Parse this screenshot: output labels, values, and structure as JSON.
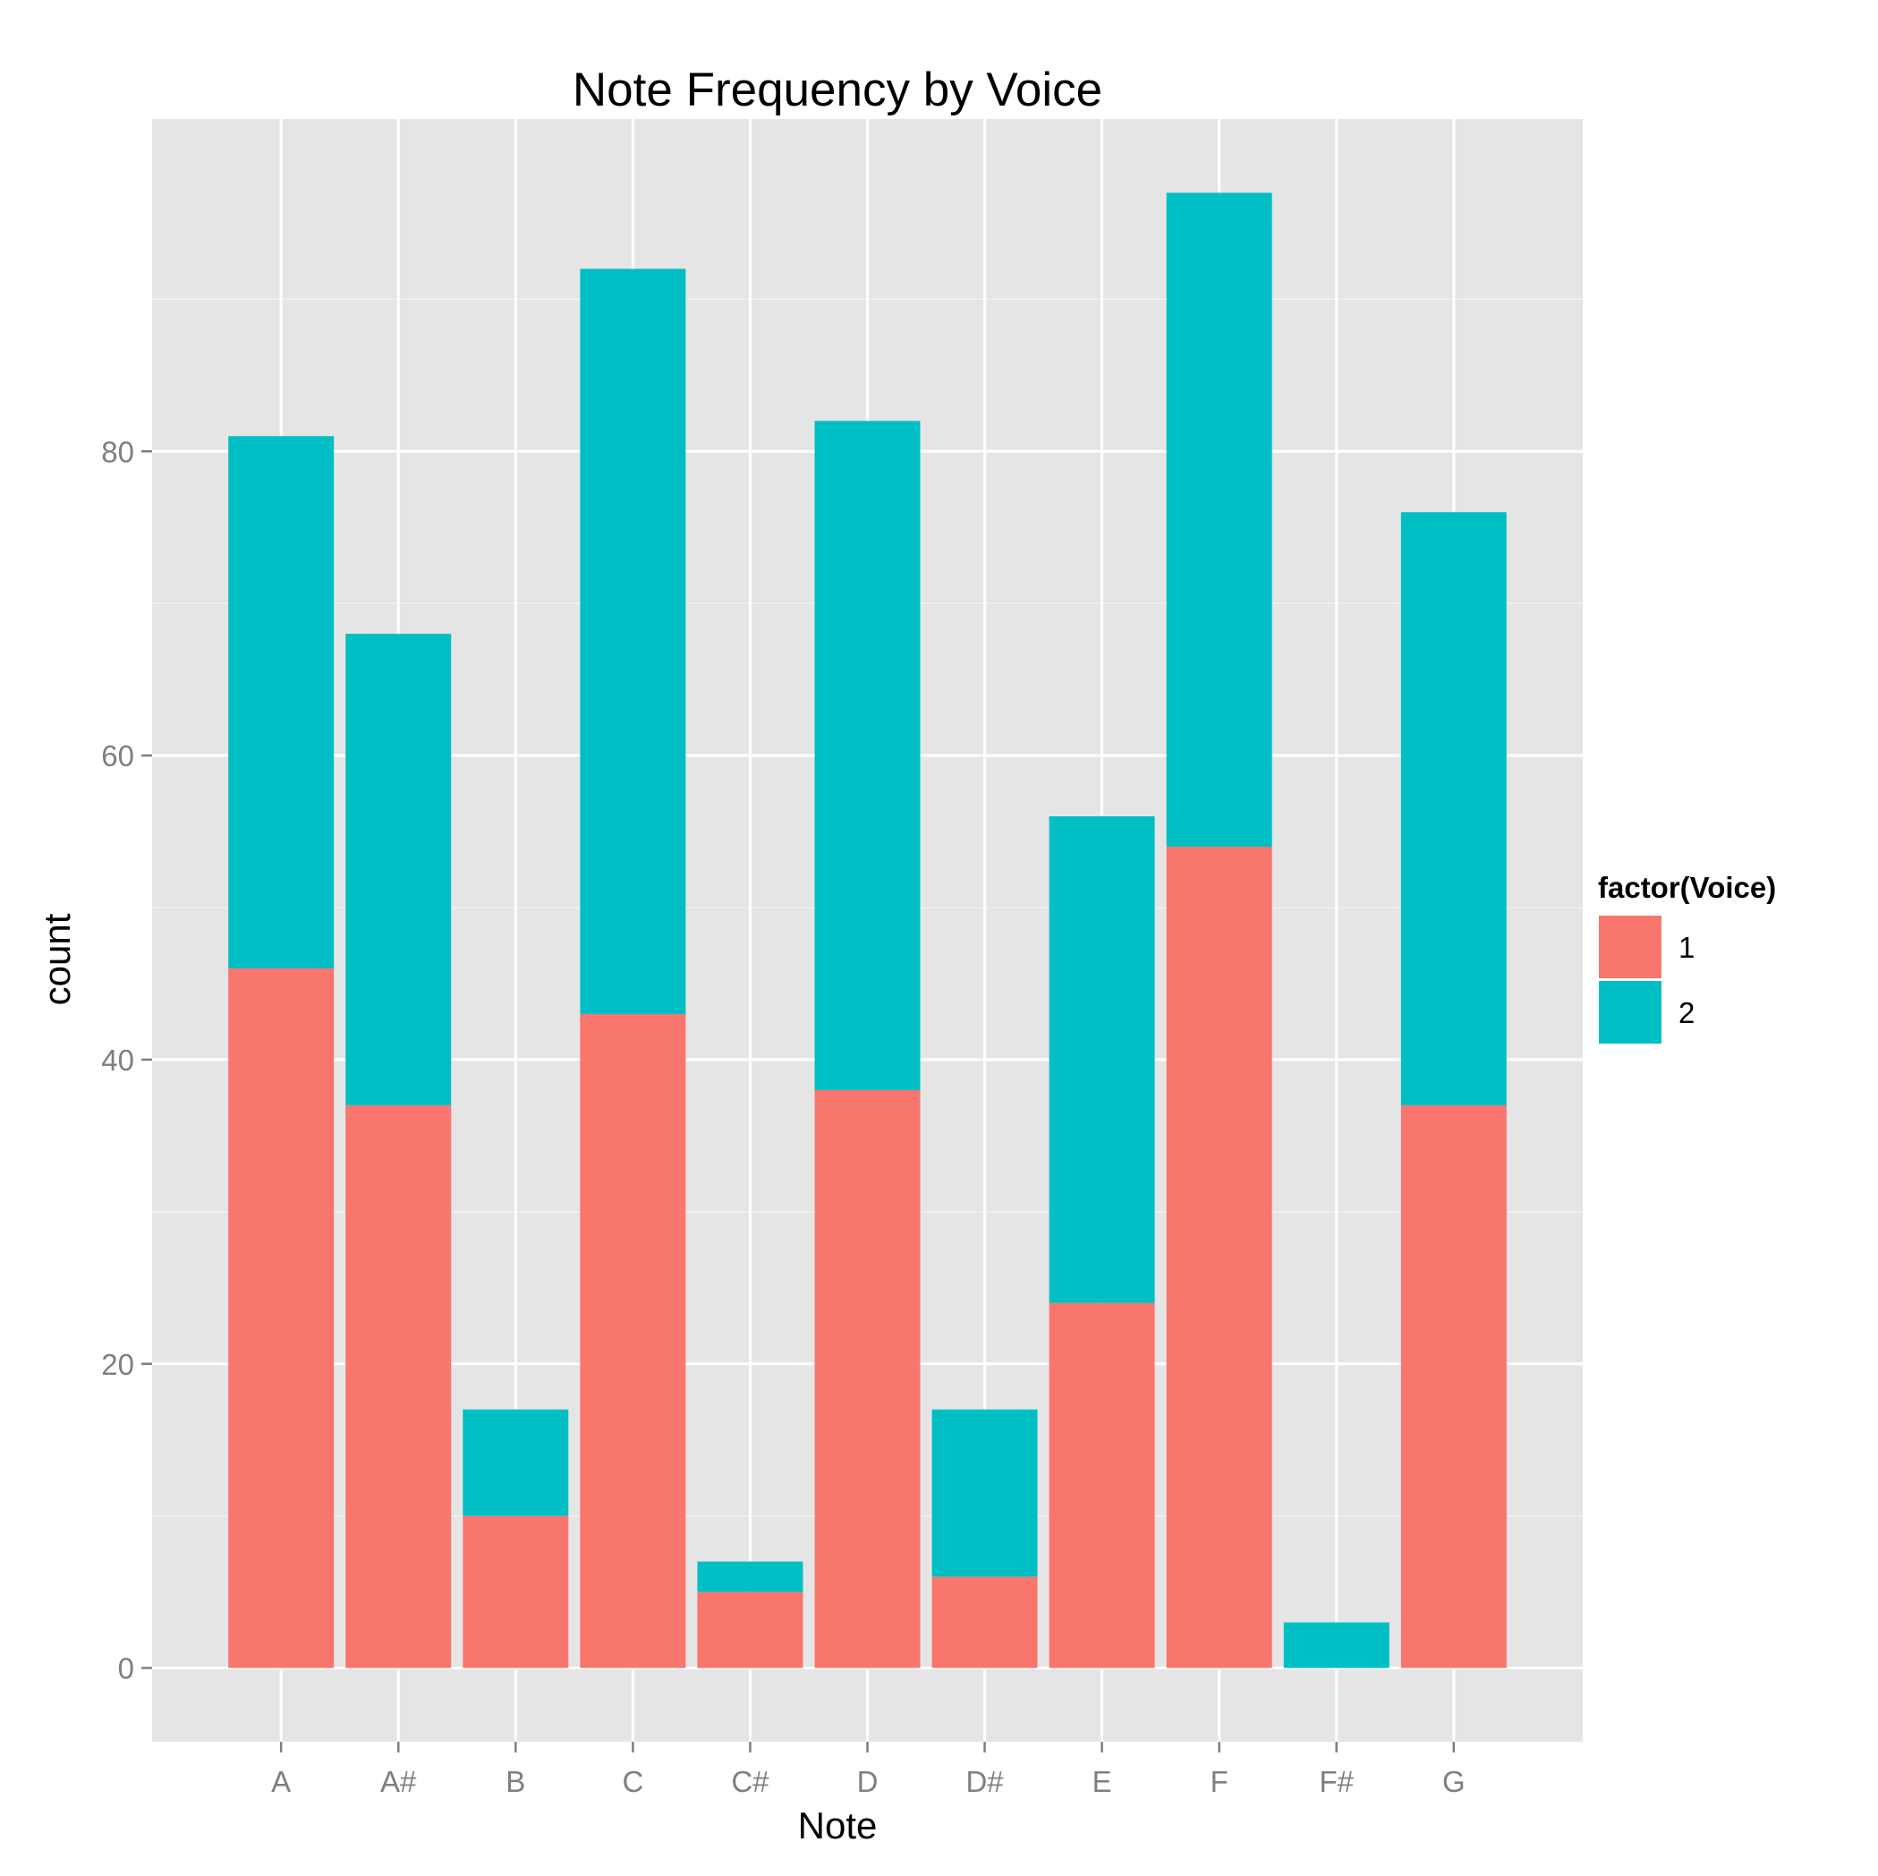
{
  "chart_data": {
    "type": "bar",
    "stacked": true,
    "title": "Note Frequency by Voice",
    "xlabel": "Note",
    "ylabel": "count",
    "categories": [
      "A",
      "A#",
      "B",
      "C",
      "C#",
      "D",
      "D#",
      "E",
      "F",
      "F#",
      "G"
    ],
    "series": [
      {
        "name": "1",
        "color": "#F8766D",
        "values": [
          46,
          37,
          10,
          43,
          5,
          38,
          6,
          24,
          54,
          0,
          37
        ]
      },
      {
        "name": "2",
        "color": "#00BFC4",
        "values": [
          35,
          31,
          7,
          49,
          2,
          44,
          11,
          32,
          43,
          3,
          39
        ]
      }
    ],
    "ylim": [
      -4.85,
      101.85
    ],
    "yticks": [
      0,
      20,
      40,
      60,
      80
    ],
    "grid": true,
    "background": "#E5E5E5",
    "legend": {
      "title": "factor(Voice)",
      "position": "right"
    }
  }
}
